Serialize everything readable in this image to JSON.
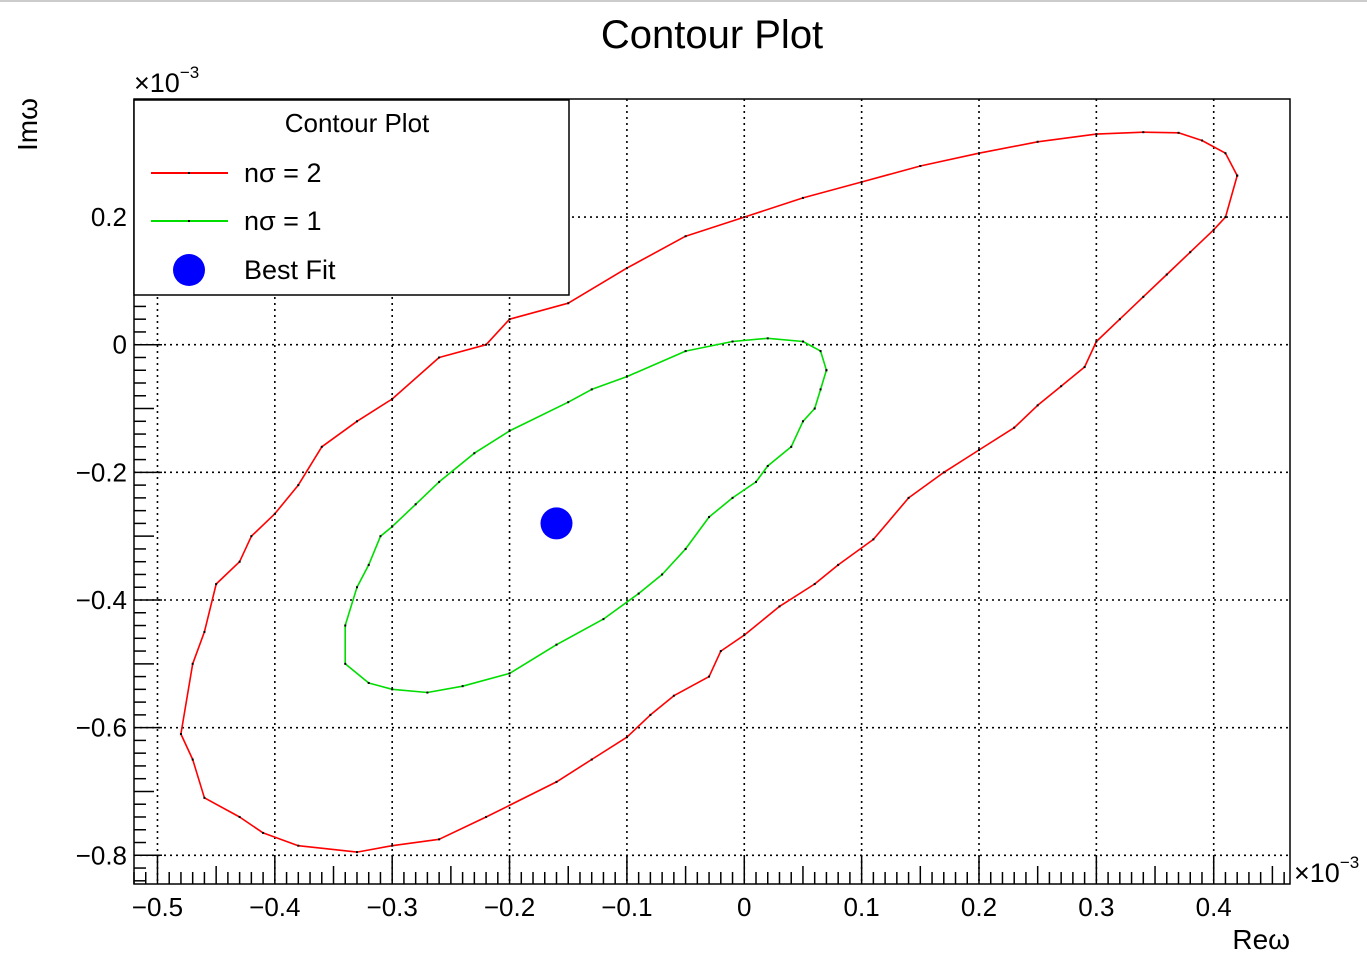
{
  "chart_data": {
    "type": "line",
    "title": "Contour Plot",
    "xlabel": "Reω",
    "ylabel": "Imω",
    "x_multiplier": "×10",
    "x_multiplier_exp": "−3",
    "y_multiplier": "×10",
    "y_multiplier_exp": "−3",
    "xlim": [
      -0.52,
      0.465
    ],
    "ylim": [
      -0.845,
      0.385
    ],
    "x_ticks": [
      -0.5,
      -0.4,
      -0.3,
      -0.2,
      -0.1,
      0,
      0.1,
      0.2,
      0.3,
      0.4
    ],
    "x_tick_labels": [
      "−0.5",
      "−0.4",
      "−0.3",
      "−0.2",
      "−0.1",
      "0",
      "0.1",
      "0.2",
      "0.3",
      "0.4"
    ],
    "y_ticks": [
      -0.8,
      -0.6,
      -0.4,
      -0.2,
      0,
      0.2
    ],
    "y_tick_labels": [
      "−0.8",
      "−0.6",
      "−0.4",
      "−0.2",
      "0",
      "0.2"
    ],
    "grid": true,
    "legend": {
      "title": "Contour Plot",
      "placement": "top-left",
      "entries": [
        "nσ = 2",
        "nσ = 1",
        "Best Fit"
      ]
    },
    "series": [
      {
        "name": "nσ = 2",
        "color": "#ff0000",
        "closed": true,
        "points": [
          [
            0.42,
            0.265
          ],
          [
            0.41,
            0.3
          ],
          [
            0.39,
            0.32
          ],
          [
            0.37,
            0.332
          ],
          [
            0.34,
            0.333
          ],
          [
            0.3,
            0.33
          ],
          [
            0.25,
            0.318
          ],
          [
            0.2,
            0.3
          ],
          [
            0.15,
            0.28
          ],
          [
            0.1,
            0.255
          ],
          [
            0.05,
            0.23
          ],
          [
            0.0,
            0.2
          ],
          [
            -0.05,
            0.17
          ],
          [
            -0.1,
            0.12
          ],
          [
            -0.15,
            0.065
          ],
          [
            -0.2,
            0.04
          ],
          [
            -0.22,
            0.0
          ],
          [
            -0.26,
            -0.02
          ],
          [
            -0.3,
            -0.085
          ],
          [
            -0.33,
            -0.12
          ],
          [
            -0.36,
            -0.16
          ],
          [
            -0.38,
            -0.22
          ],
          [
            -0.4,
            -0.265
          ],
          [
            -0.42,
            -0.3
          ],
          [
            -0.43,
            -0.34
          ],
          [
            -0.45,
            -0.375
          ],
          [
            -0.46,
            -0.45
          ],
          [
            -0.47,
            -0.5
          ],
          [
            -0.48,
            -0.61
          ],
          [
            -0.47,
            -0.65
          ],
          [
            -0.46,
            -0.71
          ],
          [
            -0.43,
            -0.74
          ],
          [
            -0.41,
            -0.765
          ],
          [
            -0.38,
            -0.785
          ],
          [
            -0.33,
            -0.795
          ],
          [
            -0.3,
            -0.785
          ],
          [
            -0.26,
            -0.775
          ],
          [
            -0.22,
            -0.74
          ],
          [
            -0.16,
            -0.685
          ],
          [
            -0.13,
            -0.65
          ],
          [
            -0.1,
            -0.615
          ],
          [
            -0.08,
            -0.58
          ],
          [
            -0.06,
            -0.55
          ],
          [
            -0.03,
            -0.52
          ],
          [
            -0.02,
            -0.48
          ],
          [
            0.0,
            -0.455
          ],
          [
            0.03,
            -0.41
          ],
          [
            0.06,
            -0.375
          ],
          [
            0.08,
            -0.345
          ],
          [
            0.11,
            -0.305
          ],
          [
            0.14,
            -0.24
          ],
          [
            0.17,
            -0.2
          ],
          [
            0.2,
            -0.165
          ],
          [
            0.23,
            -0.13
          ],
          [
            0.25,
            -0.095
          ],
          [
            0.27,
            -0.065
          ],
          [
            0.29,
            -0.035
          ],
          [
            0.3,
            0.005
          ],
          [
            0.32,
            0.04
          ],
          [
            0.34,
            0.075
          ],
          [
            0.36,
            0.11
          ],
          [
            0.38,
            0.145
          ],
          [
            0.4,
            0.18
          ],
          [
            0.41,
            0.2
          ],
          [
            0.42,
            0.265
          ]
        ]
      },
      {
        "name": "nσ = 1",
        "color": "#00dd00",
        "closed": true,
        "points": [
          [
            0.07,
            -0.04
          ],
          [
            0.065,
            -0.01
          ],
          [
            0.05,
            0.005
          ],
          [
            0.02,
            0.01
          ],
          [
            -0.01,
            0.005
          ],
          [
            -0.05,
            -0.01
          ],
          [
            -0.1,
            -0.05
          ],
          [
            -0.13,
            -0.07
          ],
          [
            -0.15,
            -0.09
          ],
          [
            -0.2,
            -0.135
          ],
          [
            -0.23,
            -0.17
          ],
          [
            -0.26,
            -0.215
          ],
          [
            -0.28,
            -0.25
          ],
          [
            -0.3,
            -0.285
          ],
          [
            -0.31,
            -0.3
          ],
          [
            -0.32,
            -0.345
          ],
          [
            -0.33,
            -0.38
          ],
          [
            -0.34,
            -0.44
          ],
          [
            -0.34,
            -0.5
          ],
          [
            -0.32,
            -0.53
          ],
          [
            -0.3,
            -0.54
          ],
          [
            -0.27,
            -0.545
          ],
          [
            -0.24,
            -0.535
          ],
          [
            -0.2,
            -0.515
          ],
          [
            -0.16,
            -0.47
          ],
          [
            -0.12,
            -0.43
          ],
          [
            -0.09,
            -0.39
          ],
          [
            -0.07,
            -0.36
          ],
          [
            -0.05,
            -0.32
          ],
          [
            -0.03,
            -0.27
          ],
          [
            -0.01,
            -0.24
          ],
          [
            0.01,
            -0.215
          ],
          [
            0.02,
            -0.19
          ],
          [
            0.04,
            -0.16
          ],
          [
            0.05,
            -0.12
          ],
          [
            0.06,
            -0.1
          ],
          [
            0.065,
            -0.07
          ],
          [
            0.07,
            -0.04
          ]
        ]
      }
    ],
    "best_fit": {
      "name": "Best Fit",
      "x": -0.16,
      "y": -0.28,
      "color": "#0000ff"
    }
  }
}
